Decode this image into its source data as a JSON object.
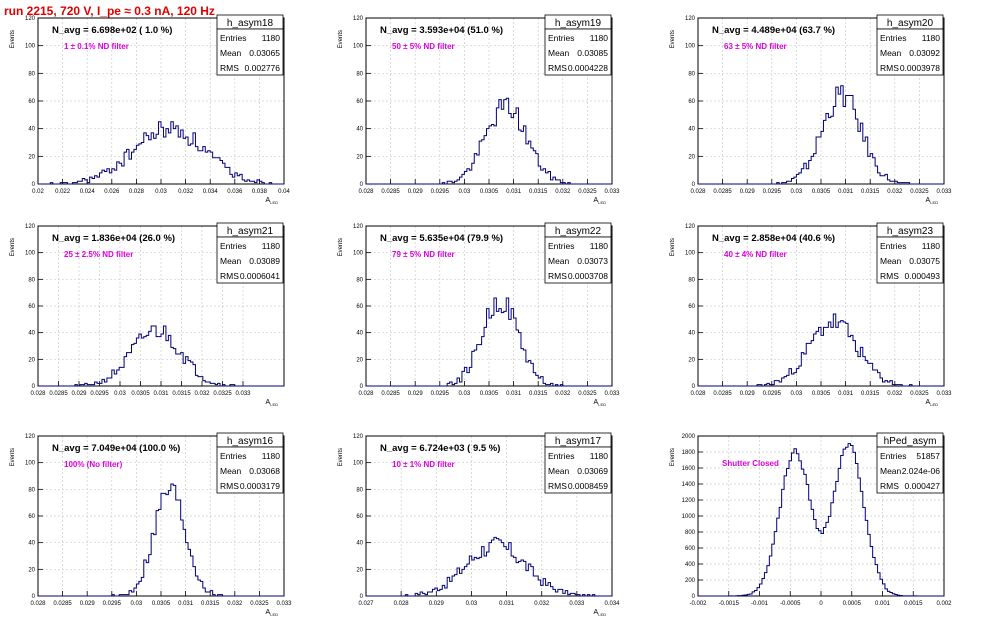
{
  "run_title": "run 2215,   720 V, I_pe ≈ 0.3 nA, 120 Hz",
  "colors": {
    "title": "#e00000",
    "hist_line": "#00007a",
    "annotation": "#e000e0",
    "grid": "#cccccc",
    "axis": "#000000"
  },
  "chart_data": [
    {
      "type": "histogram",
      "name": "h_asym18",
      "xlim": [
        0.02,
        0.04
      ],
      "ylim": [
        0,
        120
      ],
      "xticks": [
        0.02,
        0.022,
        0.024,
        0.026,
        0.028,
        0.03,
        0.032,
        0.034,
        0.036,
        0.038,
        0.04
      ],
      "xtick_labels": [
        "0.02",
        "0.022",
        "0.024",
        "0.026",
        "0.028",
        "0.03",
        "0.032",
        "0.034",
        "0.036",
        "0.038",
        "0.04"
      ],
      "yticks": [
        0,
        20,
        40,
        60,
        80,
        100,
        120
      ],
      "ylabel": "Events",
      "xlabel": "A_LED",
      "title_stat": "N_avg = 6.698e+02 ( 1.0 %)",
      "filter": "1 ± 0.1% ND filter",
      "stats": {
        "Entries": "1180",
        "Mean": "0.03065",
        "RMS": "0.002776"
      },
      "shape": {
        "mode": "gauss",
        "mean": 0.03065,
        "sigma": 0.0029,
        "peak": 40,
        "seed": 18
      }
    },
    {
      "type": "histogram",
      "name": "h_asym19",
      "xlim": [
        0.028,
        0.033
      ],
      "ylim": [
        0,
        120
      ],
      "xticks": [
        0.028,
        0.0285,
        0.029,
        0.0295,
        0.03,
        0.0305,
        0.031,
        0.0315,
        0.032,
        0.0325,
        0.033
      ],
      "xtick_labels": [
        "0.028",
        "0.0285",
        "0.029",
        "0.0295",
        "0.03",
        "0.0305",
        "0.031",
        "0.0315",
        "0.032",
        "0.0325",
        "0.033"
      ],
      "yticks": [
        0,
        20,
        40,
        60,
        80,
        100,
        120
      ],
      "ylabel": "Events",
      "xlabel": "A_LED",
      "title_stat": "N_avg = 3.593e+04 (51.0 %)",
      "filter": "50 ± 5% ND filter",
      "stats": {
        "Entries": "1180",
        "Mean": "0.03085",
        "RMS": "0.0004228"
      },
      "shape": {
        "mode": "gauss",
        "mean": 0.03085,
        "sigma": 0.00042,
        "peak": 56,
        "seed": 19
      }
    },
    {
      "type": "histogram",
      "name": "h_asym20",
      "xlim": [
        0.028,
        0.033
      ],
      "ylim": [
        0,
        120
      ],
      "xticks": [
        0.028,
        0.0285,
        0.029,
        0.0295,
        0.03,
        0.0305,
        0.031,
        0.0315,
        0.032,
        0.0325,
        0.033
      ],
      "xtick_labels": [
        "0.028",
        "0.0285",
        "0.029",
        "0.0295",
        "0.03",
        "0.0305",
        "0.031",
        "0.0315",
        "0.032",
        "0.0325",
        "0.033"
      ],
      "yticks": [
        0,
        20,
        40,
        60,
        80,
        100,
        120
      ],
      "ylabel": "Events",
      "xlabel": "A_LED",
      "title_stat": "N_avg = 4.489e+04 (63.7 %)",
      "filter": "63 ± 5% ND filter",
      "stats": {
        "Entries": "1180",
        "Mean": "0.03092",
        "RMS": "0.0003978"
      },
      "shape": {
        "mode": "gauss",
        "mean": 0.03092,
        "sigma": 0.0004,
        "peak": 64,
        "seed": 20
      }
    },
    {
      "type": "histogram",
      "name": "h_asym21",
      "xlim": [
        0.028,
        0.034
      ],
      "ylim": [
        0,
        120
      ],
      "xticks": [
        0.028,
        0.0285,
        0.029,
        0.0295,
        0.03,
        0.0305,
        0.031,
        0.0315,
        0.032,
        0.0325,
        0.033
      ],
      "xtick_labels": [
        "0.028",
        "0.0285",
        "0.029",
        "0.0295",
        "0.03",
        "0.0305",
        "0.031",
        "0.0315",
        "0.032",
        "0.0325",
        "0.033"
      ],
      "yticks": [
        0,
        20,
        40,
        60,
        80,
        100,
        120
      ],
      "ylabel": "Events",
      "xlabel": "A_LED",
      "title_stat": "N_avg = 1.836e+04 (26.0 %)",
      "filter": "25 ± 2.5% ND filter",
      "stats": {
        "Entries": "1180",
        "Mean": "0.03089",
        "RMS": "0.0006041"
      },
      "shape": {
        "mode": "gauss",
        "mean": 0.03089,
        "sigma": 0.0006,
        "peak": 42,
        "seed": 21
      }
    },
    {
      "type": "histogram",
      "name": "h_asym22",
      "xlim": [
        0.028,
        0.033
      ],
      "ylim": [
        0,
        120
      ],
      "xticks": [
        0.028,
        0.0285,
        0.029,
        0.0295,
        0.03,
        0.0305,
        0.031,
        0.0315,
        0.032,
        0.0325,
        0.033
      ],
      "xtick_labels": [
        "0.028",
        "0.0285",
        "0.029",
        "0.0295",
        "0.03",
        "0.0305",
        "0.031",
        "0.0315",
        "0.032",
        "0.0325",
        "0.033"
      ],
      "yticks": [
        0,
        20,
        40,
        60,
        80,
        100,
        120
      ],
      "ylabel": "Events",
      "xlabel": "A_LED",
      "title_stat": "N_avg = 5.635e+04 (79.9 %)",
      "filter": "79 ± 5% ND filter",
      "stats": {
        "Entries": "1180",
        "Mean": "0.03073",
        "RMS": "0.0003708"
      },
      "shape": {
        "mode": "gauss",
        "mean": 0.03073,
        "sigma": 0.00037,
        "peak": 64,
        "seed": 22
      }
    },
    {
      "type": "histogram",
      "name": "h_asym23",
      "xlim": [
        0.028,
        0.033
      ],
      "ylim": [
        0,
        120
      ],
      "xticks": [
        0.028,
        0.0285,
        0.029,
        0.0295,
        0.03,
        0.0305,
        0.031,
        0.0315,
        0.032,
        0.0325,
        0.033
      ],
      "xtick_labels": [
        "0.028",
        "0.0285",
        "0.029",
        "0.0295",
        "0.03",
        "0.0305",
        "0.031",
        "0.0315",
        "0.032",
        "0.0325",
        "0.033"
      ],
      "yticks": [
        0,
        20,
        40,
        60,
        80,
        100,
        120
      ],
      "ylabel": "Events",
      "xlabel": "A_LED",
      "title_stat": "N_avg = 2.858e+04 (40.6 %)",
      "filter": "40 ± 4% ND filter",
      "stats": {
        "Entries": "1180",
        "Mean": "0.03075",
        "RMS": "0.000493"
      },
      "shape": {
        "mode": "gauss",
        "mean": 0.03075,
        "sigma": 0.00049,
        "peak": 48,
        "seed": 23
      }
    },
    {
      "type": "histogram",
      "name": "h_asym16",
      "xlim": [
        0.028,
        0.033
      ],
      "ylim": [
        0,
        120
      ],
      "xticks": [
        0.028,
        0.0285,
        0.029,
        0.0295,
        0.03,
        0.0305,
        0.031,
        0.0315,
        0.032,
        0.0325,
        0.033
      ],
      "xtick_labels": [
        "0.028",
        "0.0285",
        "0.029",
        "0.0295",
        "0.03",
        "0.0305",
        "0.031",
        "0.0315",
        "0.032",
        "0.0325",
        "0.033"
      ],
      "yticks": [
        0,
        20,
        40,
        60,
        80,
        100,
        120
      ],
      "ylabel": "Events",
      "xlabel": "A_LED",
      "title_stat": "N_avg = 7.049e+04 (100.0 %)",
      "filter": "100% (No filter)",
      "stats": {
        "Entries": "1180",
        "Mean": "0.03068",
        "RMS": "0.0003179"
      },
      "shape": {
        "mode": "gauss",
        "mean": 0.03068,
        "sigma": 0.00032,
        "peak": 80,
        "seed": 16
      }
    },
    {
      "type": "histogram",
      "name": "h_asym17",
      "xlim": [
        0.027,
        0.034
      ],
      "ylim": [
        0,
        120
      ],
      "xticks": [
        0.027,
        0.028,
        0.029,
        0.03,
        0.031,
        0.032,
        0.033,
        0.034
      ],
      "xtick_labels": [
        "0.027",
        "0.028",
        "0.029",
        "0.03",
        "0.031",
        "0.032",
        "0.033",
        "0.034"
      ],
      "yticks": [
        0,
        20,
        40,
        60,
        80,
        100,
        120
      ],
      "ylabel": "Events",
      "xlabel": "A_LED",
      "title_stat": "N_avg = 6.724e+03 ( 9.5 %)",
      "filter": "10 ± 1% ND filter",
      "stats": {
        "Entries": "1180",
        "Mean": "0.03069",
        "RMS": "0.0008459"
      },
      "shape": {
        "mode": "gauss",
        "mean": 0.03069,
        "sigma": 0.00085,
        "peak": 38,
        "seed": 17
      }
    },
    {
      "type": "histogram",
      "name": "hPed_asym",
      "xlim": [
        -0.002,
        0.002
      ],
      "ylim": [
        0,
        2000
      ],
      "xticks": [
        -0.002,
        -0.0015,
        -0.001,
        -0.0005,
        0,
        0.0005,
        0.001,
        0.0015,
        0.002
      ],
      "xtick_labels": [
        "-0.002",
        "-0.0015",
        "-0.001",
        "-0.0005",
        "0",
        "0.0005",
        "0.001",
        "0.0015",
        "0.002"
      ],
      "yticks": [
        0,
        200,
        400,
        600,
        800,
        1000,
        1200,
        1400,
        1600,
        1800,
        2000
      ],
      "ylabel": "Events",
      "xlabel": "",
      "title_stat": "",
      "filter": "Shutter Closed",
      "stats": {
        "Entries": "51857",
        "Mean": "2.024e-06",
        "RMS": "0.000427"
      },
      "shape": {
        "mode": "double",
        "mean1": -0.00042,
        "mean2": 0.00045,
        "sigma": 0.00025,
        "peak1": 1800,
        "peak2": 1880,
        "seed": 99
      }
    }
  ]
}
